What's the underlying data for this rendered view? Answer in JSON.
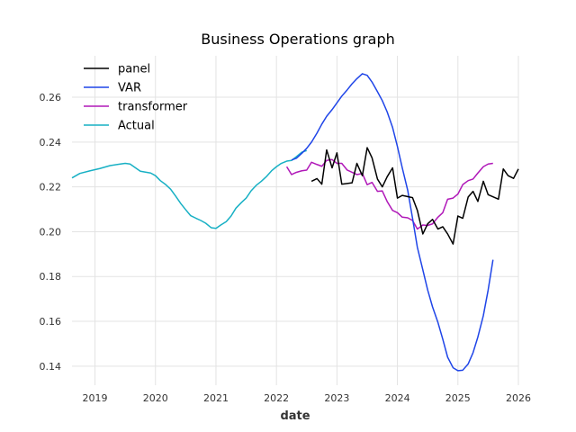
{
  "chart_data": {
    "type": "line",
    "title": "Business Operations graph",
    "xlabel": "date",
    "ylabel": "",
    "xlim": [
      2018.62,
      2026.0
    ],
    "ylim": [
      0.1315,
      0.2785
    ],
    "x_ticks": [
      2019,
      2020,
      2021,
      2022,
      2023,
      2024,
      2025,
      2026
    ],
    "y_ticks": [
      0.14,
      0.16,
      0.18,
      0.2,
      0.22,
      0.24,
      0.26
    ],
    "y_tick_labels": [
      "0.14",
      "0.16",
      "0.18",
      "0.20",
      "0.22",
      "0.24",
      "0.26"
    ],
    "grid": true,
    "legend_placement": "top-left",
    "series": [
      {
        "name": "panel",
        "color": "#000000",
        "points": [
          [
            2022.58,
            0.2225
          ],
          [
            2022.67,
            0.2237
          ],
          [
            2022.75,
            0.2212
          ],
          [
            2022.83,
            0.2365
          ],
          [
            2022.92,
            0.2285
          ],
          [
            2023.0,
            0.2352
          ],
          [
            2023.08,
            0.2212
          ],
          [
            2023.25,
            0.2218
          ],
          [
            2023.33,
            0.2305
          ],
          [
            2023.42,
            0.225
          ],
          [
            2023.5,
            0.2375
          ],
          [
            2023.58,
            0.233
          ],
          [
            2023.67,
            0.2235
          ],
          [
            2023.75,
            0.22
          ],
          [
            2023.83,
            0.2245
          ],
          [
            2023.92,
            0.2285
          ],
          [
            2024.0,
            0.215
          ],
          [
            2024.08,
            0.2162
          ],
          [
            2024.25,
            0.2152
          ],
          [
            2024.33,
            0.2095
          ],
          [
            2024.42,
            0.199
          ],
          [
            2024.5,
            0.2035
          ],
          [
            2024.58,
            0.2055
          ],
          [
            2024.67,
            0.2012
          ],
          [
            2024.75,
            0.2022
          ],
          [
            2024.83,
            0.199
          ],
          [
            2024.92,
            0.1945
          ],
          [
            2025.0,
            0.207
          ],
          [
            2025.08,
            0.206
          ],
          [
            2025.17,
            0.2155
          ],
          [
            2025.25,
            0.218
          ],
          [
            2025.33,
            0.2135
          ],
          [
            2025.42,
            0.2225
          ],
          [
            2025.5,
            0.2165
          ],
          [
            2025.67,
            0.2145
          ],
          [
            2025.75,
            0.228
          ],
          [
            2025.83,
            0.225
          ],
          [
            2025.92,
            0.2238
          ],
          [
            2026.0,
            0.228
          ]
        ]
      },
      {
        "name": "VAR",
        "color": "#1f45e8",
        "points": [
          [
            2022.25,
            0.232
          ],
          [
            2022.33,
            0.2328
          ],
          [
            2022.42,
            0.235
          ],
          [
            2022.5,
            0.2372
          ],
          [
            2022.58,
            0.24
          ],
          [
            2022.67,
            0.244
          ],
          [
            2022.75,
            0.248
          ],
          [
            2022.83,
            0.2515
          ],
          [
            2022.92,
            0.2545
          ],
          [
            2023.0,
            0.2575
          ],
          [
            2023.08,
            0.2605
          ],
          [
            2023.17,
            0.2633
          ],
          [
            2023.25,
            0.266
          ],
          [
            2023.33,
            0.2683
          ],
          [
            2023.42,
            0.2705
          ],
          [
            2023.5,
            0.2698
          ],
          [
            2023.58,
            0.2668
          ],
          [
            2023.67,
            0.2625
          ],
          [
            2023.75,
            0.2585
          ],
          [
            2023.83,
            0.2535
          ],
          [
            2023.92,
            0.2465
          ],
          [
            2024.0,
            0.238
          ],
          [
            2024.08,
            0.2285
          ],
          [
            2024.17,
            0.2185
          ],
          [
            2024.25,
            0.206
          ],
          [
            2024.33,
            0.193
          ],
          [
            2024.42,
            0.183
          ],
          [
            2024.5,
            0.174
          ],
          [
            2024.58,
            0.1665
          ],
          [
            2024.67,
            0.1595
          ],
          [
            2024.75,
            0.152
          ],
          [
            2024.83,
            0.144
          ],
          [
            2024.92,
            0.1393
          ],
          [
            2025.0,
            0.138
          ],
          [
            2025.08,
            0.1382
          ],
          [
            2025.17,
            0.141
          ],
          [
            2025.25,
            0.146
          ],
          [
            2025.33,
            0.153
          ],
          [
            2025.42,
            0.1625
          ],
          [
            2025.5,
            0.174
          ],
          [
            2025.58,
            0.1875
          ]
        ]
      },
      {
        "name": "transformer",
        "color": "#b018b8",
        "points": [
          [
            2022.17,
            0.229
          ],
          [
            2022.25,
            0.2255
          ],
          [
            2022.33,
            0.2265
          ],
          [
            2022.42,
            0.2272
          ],
          [
            2022.5,
            0.2275
          ],
          [
            2022.58,
            0.231
          ],
          [
            2022.67,
            0.23
          ],
          [
            2022.75,
            0.2292
          ],
          [
            2022.83,
            0.2318
          ],
          [
            2022.92,
            0.2322
          ],
          [
            2023.0,
            0.2305
          ],
          [
            2023.08,
            0.2305
          ],
          [
            2023.17,
            0.2275
          ],
          [
            2023.25,
            0.2265
          ],
          [
            2023.33,
            0.2255
          ],
          [
            2023.42,
            0.226
          ],
          [
            2023.5,
            0.221
          ],
          [
            2023.58,
            0.222
          ],
          [
            2023.67,
            0.218
          ],
          [
            2023.75,
            0.2182
          ],
          [
            2023.83,
            0.2135
          ],
          [
            2023.92,
            0.2095
          ],
          [
            2024.0,
            0.2085
          ],
          [
            2024.08,
            0.2065
          ],
          [
            2024.17,
            0.2062
          ],
          [
            2024.25,
            0.205
          ],
          [
            2024.33,
            0.2012
          ],
          [
            2024.42,
            0.203
          ],
          [
            2024.5,
            0.2028
          ],
          [
            2024.58,
            0.2035
          ],
          [
            2024.67,
            0.2065
          ],
          [
            2024.75,
            0.2085
          ],
          [
            2024.83,
            0.2145
          ],
          [
            2024.92,
            0.215
          ],
          [
            2025.0,
            0.2168
          ],
          [
            2025.08,
            0.221
          ],
          [
            2025.17,
            0.2228
          ],
          [
            2025.25,
            0.2235
          ],
          [
            2025.33,
            0.2262
          ],
          [
            2025.42,
            0.229
          ],
          [
            2025.5,
            0.2302
          ],
          [
            2025.58,
            0.2305
          ]
        ]
      },
      {
        "name": "Actual",
        "color": "#17b0c4",
        "points": [
          [
            2018.62,
            0.224
          ],
          [
            2018.75,
            0.226
          ],
          [
            2018.92,
            0.2272
          ],
          [
            2019.08,
            0.2282
          ],
          [
            2019.25,
            0.2295
          ],
          [
            2019.42,
            0.2302
          ],
          [
            2019.5,
            0.2305
          ],
          [
            2019.58,
            0.2302
          ],
          [
            2019.67,
            0.2285
          ],
          [
            2019.75,
            0.227
          ],
          [
            2019.92,
            0.2262
          ],
          [
            2020.0,
            0.225
          ],
          [
            2020.08,
            0.2228
          ],
          [
            2020.17,
            0.221
          ],
          [
            2020.25,
            0.219
          ],
          [
            2020.33,
            0.216
          ],
          [
            2020.42,
            0.2125
          ],
          [
            2020.5,
            0.2098
          ],
          [
            2020.58,
            0.2072
          ],
          [
            2020.67,
            0.206
          ],
          [
            2020.75,
            0.205
          ],
          [
            2020.83,
            0.2038
          ],
          [
            2020.92,
            0.2018
          ],
          [
            2021.0,
            0.2015
          ],
          [
            2021.08,
            0.203
          ],
          [
            2021.17,
            0.2045
          ],
          [
            2021.25,
            0.207
          ],
          [
            2021.33,
            0.2105
          ],
          [
            2021.42,
            0.213
          ],
          [
            2021.5,
            0.215
          ],
          [
            2021.58,
            0.2182
          ],
          [
            2021.67,
            0.2208
          ],
          [
            2021.75,
            0.2225
          ],
          [
            2021.83,
            0.2245
          ],
          [
            2021.92,
            0.2272
          ],
          [
            2022.0,
            0.229
          ],
          [
            2022.08,
            0.2305
          ],
          [
            2022.17,
            0.2315
          ],
          [
            2022.25,
            0.2318
          ],
          [
            2022.33,
            0.2335
          ],
          [
            2022.42,
            0.2355
          ],
          [
            2022.5,
            0.2362
          ]
        ]
      }
    ]
  }
}
